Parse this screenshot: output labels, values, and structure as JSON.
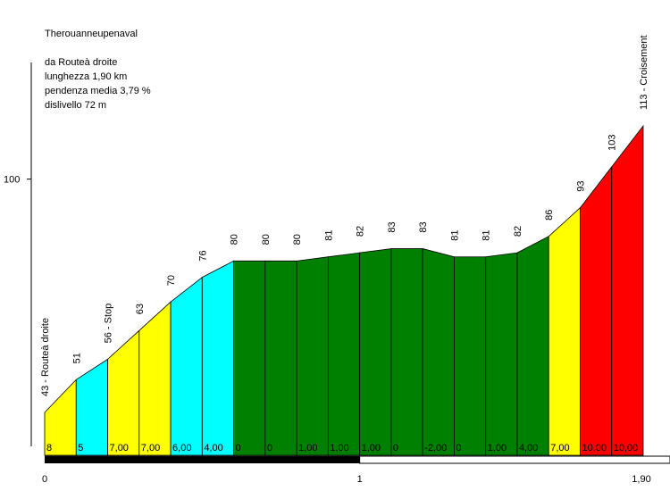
{
  "info": {
    "name": "Therouanneupenaval",
    "from": "da Routeà droite",
    "length": "lunghezza 1,90 km",
    "avg_gradient": "pendenza media 3,79 %",
    "elevation_gain": "dislivello 72 m"
  },
  "chart_data": {
    "type": "area",
    "x_unit": "km",
    "x": [
      0,
      0.1,
      0.2,
      0.3,
      0.4,
      0.5,
      0.6,
      0.7,
      0.8,
      0.9,
      1.0,
      1.1,
      1.2,
      1.3,
      1.4,
      1.5,
      1.6,
      1.7,
      1.8,
      1.9
    ],
    "altitude": [
      43,
      51,
      56,
      63,
      70,
      76,
      80,
      80,
      80,
      81,
      82,
      83,
      83,
      81,
      81,
      82,
      86,
      93,
      103,
      113
    ],
    "point_labels": [
      "43 - Routeà droite",
      "51",
      "56 - Stop",
      "63",
      "70",
      "76",
      "80",
      "80",
      "80",
      "81",
      "82",
      "83",
      "83",
      "81",
      "81",
      "82",
      "86",
      "93",
      "103",
      "113 - Croisement"
    ],
    "segment_gradient_labels": [
      "8",
      "5",
      "7,00",
      "7,00",
      "6,00",
      "4,00",
      "0",
      "0",
      "1,00",
      "1,00",
      "1,00",
      "0",
      "-2,00",
      "0",
      "1,00",
      "4,00",
      "7,00",
      "10,00",
      "10,00"
    ],
    "segment_colors": [
      "#ffff00",
      "#00ffff",
      "#ffff00",
      "#ffff00",
      "#00ffff",
      "#00ffff",
      "#008000",
      "#008000",
      "#008000",
      "#008000",
      "#008000",
      "#008000",
      "#008000",
      "#008000",
      "#008000",
      "#008000",
      "#ffff00",
      "#ff0000",
      "#ff0000"
    ],
    "y_ticks": [
      {
        "value": 100,
        "label": "100"
      }
    ],
    "x_ticks": [
      {
        "value": 0,
        "label": "0"
      },
      {
        "value": 1,
        "label": "1"
      },
      {
        "value": 1.9,
        "label": "1,90"
      }
    ],
    "ylim": [
      30,
      128
    ],
    "xlim": [
      0,
      1.9
    ]
  }
}
